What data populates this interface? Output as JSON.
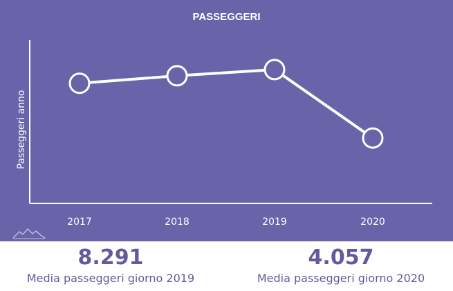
{
  "chart_data": {
    "type": "line",
    "title": "PASSEGGERI",
    "xlabel": "",
    "ylabel": "Passeggeri anno",
    "categories": [
      "2017",
      "2018",
      "2019",
      "2020"
    ],
    "series": [
      {
        "values": [
          2720000,
          2890000,
          3030000,
          1480000
        ]
      }
    ],
    "ylim": [
      0,
      3700000
    ],
    "grid": false,
    "legend": "none"
  },
  "stats": [
    {
      "value": "8.291",
      "label": "Media passeggeri giorno 2019"
    },
    {
      "value": "4.057",
      "label": "Media passeggeri giorno 2020"
    }
  ],
  "colors": {
    "background": "#6964aa",
    "foreground": "#ffffff",
    "accent_text": "#625a9c"
  },
  "icons": {
    "watermark": "mountain-logo-icon"
  }
}
